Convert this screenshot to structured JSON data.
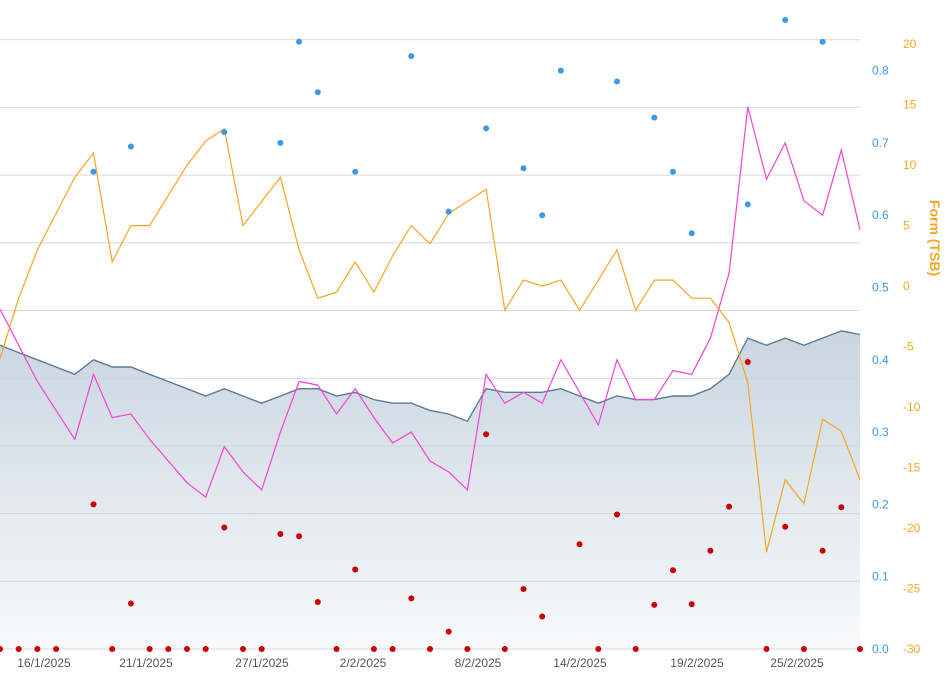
{
  "chart_data": {
    "type": "line",
    "x_labels": [
      "16/1/2025",
      "21/1/2025",
      "27/1/2025",
      "2/2/2025",
      "8/2/2025",
      "14/2/2025",
      "19/2/2025",
      "25/2/2025"
    ],
    "y_right_inner": {
      "ticks": [
        "0.0",
        "0.1",
        "0.2",
        "0.3",
        "0.4",
        "0.5",
        "0.6",
        "0.7",
        "0.8"
      ],
      "range": [
        0,
        0.87
      ]
    },
    "y_right_outer": {
      "label": "Form (TSB)",
      "ticks": [
        "-30",
        "-25",
        "-20",
        "-15",
        "-10",
        "-5",
        "0",
        "5",
        "10",
        "15",
        "20"
      ],
      "range": [
        -30,
        22
      ]
    },
    "series": [
      {
        "kind": "area",
        "color": "#5b7a95",
        "fill": "#c9d5df",
        "values": [
          0.42,
          0.41,
          0.4,
          0.39,
          0.38,
          0.4,
          0.39,
          0.39,
          0.38,
          0.37,
          0.36,
          0.35,
          0.36,
          0.35,
          0.34,
          0.35,
          0.36,
          0.36,
          0.35,
          0.355,
          0.345,
          0.34,
          0.34,
          0.33,
          0.325,
          0.315,
          0.36,
          0.355,
          0.355,
          0.355,
          0.36,
          0.35,
          0.34,
          0.35,
          0.345,
          0.345,
          0.35,
          0.35,
          0.36,
          0.38,
          0.43,
          0.42,
          0.43,
          0.42,
          0.43,
          0.44,
          0.435
        ]
      },
      {
        "kind": "line",
        "color": "#f542d4",
        "values": [
          0.47,
          0.42,
          0.37,
          0.33,
          0.29,
          0.38,
          0.32,
          0.325,
          0.29,
          0.26,
          0.23,
          0.21,
          0.28,
          0.245,
          0.22,
          0.3,
          0.37,
          0.365,
          0.325,
          0.36,
          0.32,
          0.285,
          0.3,
          0.26,
          0.245,
          0.22,
          0.38,
          0.34,
          0.355,
          0.34,
          0.4,
          0.355,
          0.31,
          0.4,
          0.345,
          0.345,
          0.385,
          0.38,
          0.43,
          0.52,
          0.75,
          0.65,
          0.7,
          0.62,
          0.6,
          0.69,
          0.58
        ]
      },
      {
        "kind": "line",
        "color": "#f5a623",
        "values": [
          -6,
          -1,
          3,
          6,
          9,
          11,
          2,
          5,
          5,
          7.5,
          10,
          12,
          13,
          5,
          7,
          9,
          3,
          -1,
          -0.5,
          2,
          -0.5,
          2.5,
          5,
          3.5,
          6,
          7,
          8,
          -2,
          0.5,
          0,
          0.5,
          -2,
          0.5,
          3,
          -2,
          0.5,
          0.5,
          -1,
          -1,
          -3,
          -8,
          -22,
          -16,
          -18,
          -11,
          -12,
          -16
        ]
      },
      {
        "kind": "scatter",
        "color": "#3b9ae8",
        "points": [
          [
            5,
            0.66
          ],
          [
            7,
            0.695
          ],
          [
            12,
            0.715
          ],
          [
            15,
            0.7
          ],
          [
            16,
            0.84
          ],
          [
            17,
            0.77
          ],
          [
            19,
            0.66
          ],
          [
            22,
            0.82
          ],
          [
            24,
            0.605
          ],
          [
            26,
            0.72
          ],
          [
            28,
            0.665
          ],
          [
            29,
            0.6
          ],
          [
            30,
            0.8
          ],
          [
            33,
            0.785
          ],
          [
            35,
            0.735
          ],
          [
            36,
            0.66
          ],
          [
            37,
            0.575
          ],
          [
            40,
            0.615
          ],
          [
            42,
            0.87
          ],
          [
            44,
            0.84
          ]
        ]
      },
      {
        "kind": "scatter",
        "color": "#cc0000",
        "points": [
          [
            0,
            0
          ],
          [
            1,
            0
          ],
          [
            2,
            0
          ],
          [
            3,
            0
          ],
          [
            5,
            0.2
          ],
          [
            6,
            0
          ],
          [
            7,
            0.063
          ],
          [
            8,
            0
          ],
          [
            9,
            0
          ],
          [
            10,
            0
          ],
          [
            11,
            0
          ],
          [
            12,
            0.168
          ],
          [
            13,
            0
          ],
          [
            14,
            0
          ],
          [
            15,
            0.159
          ],
          [
            16,
            0.156
          ],
          [
            17,
            0.065
          ],
          [
            18,
            0
          ],
          [
            19,
            0.11
          ],
          [
            20,
            0
          ],
          [
            21,
            0
          ],
          [
            22,
            0.07
          ],
          [
            23,
            0
          ],
          [
            24,
            0.024
          ],
          [
            25,
            0
          ],
          [
            26,
            0.297
          ],
          [
            27,
            0
          ],
          [
            28,
            0.083
          ],
          [
            29,
            0.045
          ],
          [
            31,
            0.145
          ],
          [
            32,
            0
          ],
          [
            33,
            0.186
          ],
          [
            34,
            0
          ],
          [
            35,
            0.061
          ],
          [
            36,
            0.109
          ],
          [
            37,
            0.062
          ],
          [
            38,
            0.136
          ],
          [
            39,
            0.197
          ],
          [
            40,
            0.397
          ],
          [
            41,
            0
          ],
          [
            42,
            0.169
          ],
          [
            43,
            0
          ],
          [
            44,
            0.136
          ],
          [
            45,
            0.196
          ],
          [
            46,
            0
          ]
        ]
      }
    ]
  }
}
